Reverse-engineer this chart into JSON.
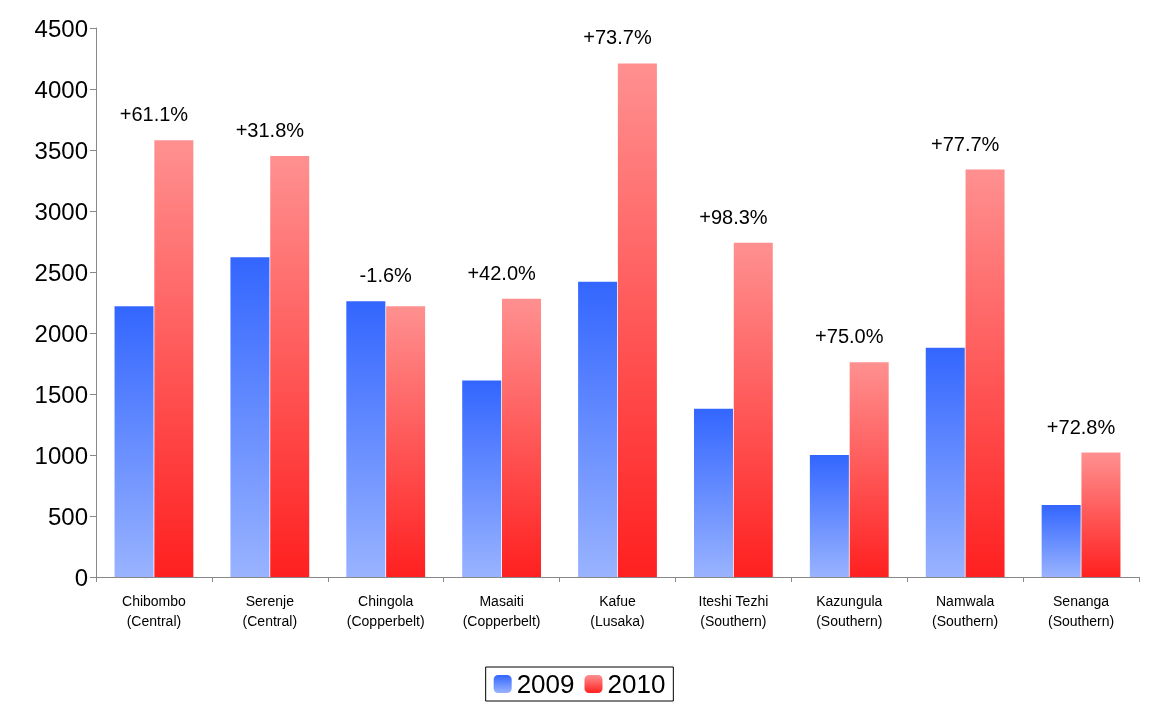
{
  "chart_data": {
    "type": "bar",
    "categories": [
      "Chibombo\n(Central)",
      "Serenje\n(Central)",
      "Chingola\n(Copperbelt)",
      "Masaiti\n(Copperbelt)",
      "Kafue\n(Lusaka)",
      "Iteshi Tezhi\n(Southern)",
      "Kazungula\n(Southern)",
      "Namwala\n(Southern)",
      "Senanga\n(Southern)"
    ],
    "series": [
      {
        "name": "2009",
        "color": "#3366ff",
        "values": [
          2220,
          2620,
          2260,
          1610,
          2420,
          1380,
          1000,
          1880,
          590
        ]
      },
      {
        "name": "2010",
        "color": "#ff2020",
        "values": [
          3580,
          3450,
          2220,
          2280,
          4210,
          2740,
          1760,
          3340,
          1020
        ]
      }
    ],
    "annotations": [
      "+61.1%",
      "+31.8%",
      "-1.6%",
      "+42.0%",
      "+73.7%",
      "+98.3%",
      "+75.0%",
      "+77.7%",
      "+72.8%"
    ],
    "ylim": [
      0,
      4500
    ],
    "yticks": [
      0,
      500,
      1000,
      1500,
      2000,
      2500,
      3000,
      3500,
      4000,
      4500
    ],
    "grid": false,
    "legend": "bottom"
  }
}
